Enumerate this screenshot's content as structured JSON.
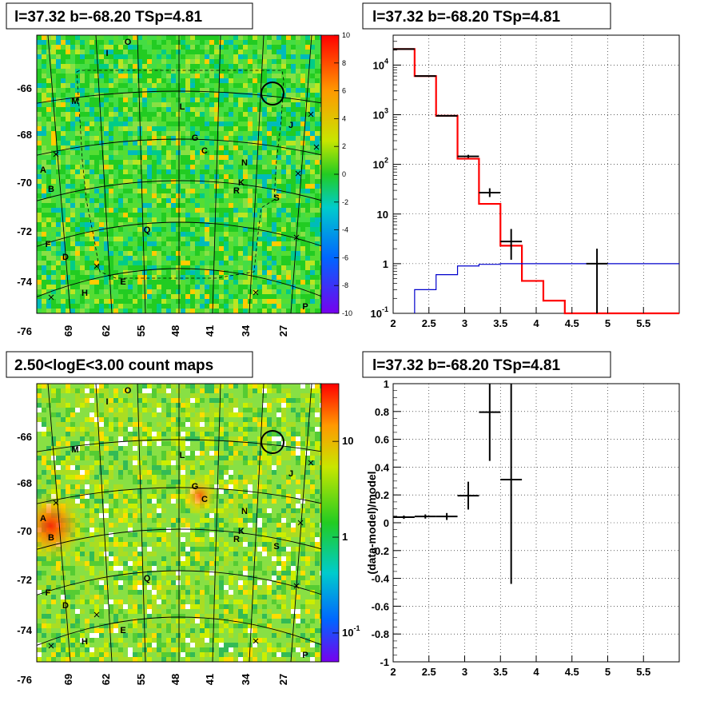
{
  "colors": {
    "model_line": "#ff0000",
    "background_line": "#0000cc",
    "data_points": "#000000"
  },
  "panels": {
    "top_left": {
      "title": "l=37.32 b=-68.20 TSp=4.81",
      "map_type": "significance map",
      "ylabels": [
        "-66",
        "-68",
        "-70",
        "-72",
        "-74",
        "-76"
      ],
      "xlabels": [
        "69",
        "62",
        "55",
        "48",
        "41",
        "34",
        "27"
      ],
      "colorbar_ticks": [
        "10",
        "8",
        "6",
        "4",
        "2",
        "0",
        "-2",
        "-4",
        "-6",
        "-8",
        "-10"
      ]
    },
    "top_right": {
      "title": "l=37.32 b=-68.20 TSp=4.81",
      "xticks": [
        "2",
        "2.5",
        "3",
        "3.5",
        "4",
        "4.5",
        "5",
        "5.5"
      ],
      "yticks": [
        {
          "base": "10",
          "exp": "4"
        },
        {
          "base": "10",
          "exp": "3"
        },
        {
          "base": "10",
          "exp": "2"
        },
        {
          "base": "10",
          "exp": ""
        },
        {
          "base": "1",
          "exp": ""
        },
        {
          "base": "10",
          "exp": "-1"
        }
      ]
    },
    "bottom_left": {
      "title": "2.50<logE<3.00 count maps",
      "ylabels": [
        "-66",
        "-68",
        "-70",
        "-72",
        "-74",
        "-76"
      ],
      "xlabels": [
        "69",
        "62",
        "55",
        "48",
        "41",
        "34",
        "27"
      ],
      "colorbar_ticks": [
        {
          "base": "10",
          "exp": ""
        },
        {
          "base": "1",
          "exp": ""
        },
        {
          "base": "10",
          "exp": "-1"
        }
      ]
    },
    "bottom_right": {
      "title": "l=37.32 b=-68.20 TSp=4.81",
      "ylabel": "(data-model)/model",
      "xticks": [
        "2",
        "2.5",
        "3",
        "3.5",
        "4",
        "4.5",
        "5",
        "5.5"
      ],
      "yticks": [
        "1",
        "0.8",
        "0.6",
        "0.4",
        "0.2",
        "0",
        "-0.2",
        "-0.4",
        "-0.6",
        "-0.8",
        "-1"
      ]
    }
  },
  "source_labels": [
    "A",
    "B",
    "C",
    "D",
    "E",
    "F",
    "G",
    "H",
    "I",
    "J",
    "K",
    "L",
    "M",
    "N",
    "O",
    "P",
    "Q",
    "R",
    "S"
  ],
  "chart_data": [
    {
      "type": "heatmap",
      "title": "l=37.32 b=-68.20 TSp=4.81",
      "colorbar_range": [
        -10,
        10
      ],
      "ylim": [
        -77,
        -65
      ],
      "xlim": [
        76,
        20
      ],
      "region_marker": {
        "l": 30,
        "b": -67.8
      }
    },
    {
      "type": "line",
      "title": "l=37.32 b=-68.20 TSp=4.81",
      "log_y": true,
      "xlim": [
        2,
        6
      ],
      "ylim": [
        0.1,
        40000
      ],
      "grid": true,
      "series": [
        {
          "role": "model",
          "color": "red",
          "bin_edges": [
            2,
            2.3,
            2.6,
            2.9,
            3.2,
            3.5,
            3.8,
            4.1,
            4.4,
            6
          ],
          "values": [
            21000,
            6000,
            950,
            130,
            16,
            2.3,
            0.45,
            0.18,
            0.1
          ]
        },
        {
          "role": "background",
          "color": "blue",
          "bin_edges": [
            2.3,
            2.6,
            2.9,
            3.2,
            3.5,
            6
          ],
          "values": [
            0.3,
            0.6,
            0.9,
            0.97,
            1.0
          ]
        }
      ],
      "data_points": [
        {
          "x": 2.15,
          "y": 21000,
          "xerr": 0.15,
          "ylo": 20500,
          "yhi": 21500
        },
        {
          "x": 2.45,
          "y": 6000,
          "xerr": 0.15,
          "ylo": 5900,
          "yhi": 6100
        },
        {
          "x": 2.75,
          "y": 950,
          "xerr": 0.15,
          "ylo": 920,
          "yhi": 980
        },
        {
          "x": 3.05,
          "y": 145,
          "xerr": 0.15,
          "ylo": 135,
          "yhi": 156
        },
        {
          "x": 3.35,
          "y": 27,
          "xerr": 0.15,
          "ylo": 22,
          "yhi": 33
        },
        {
          "x": 3.65,
          "y": 2.8,
          "xerr": 0.15,
          "ylo": 1.2,
          "yhi": 5.0
        },
        {
          "x": 4.85,
          "y": 1.0,
          "xerr": 0.15,
          "ylo": 0.1,
          "yhi": 2.0
        }
      ]
    },
    {
      "type": "heatmap",
      "title": "2.50<logE<3.00 count maps",
      "log_colorbar": true,
      "colorbar_range": [
        0.05,
        40
      ],
      "ylim": [
        -77,
        -65
      ],
      "xlim": [
        76,
        20
      ],
      "hotspots": [
        {
          "name": "A",
          "l": 73,
          "b": -71.2
        },
        {
          "name": "C",
          "l": 44,
          "b": -70.2
        }
      ]
    },
    {
      "type": "scatter",
      "title": "l=37.32 b=-68.20 TSp=4.81",
      "ylabel": "(data-model)/model",
      "xlim": [
        2,
        6
      ],
      "ylim": [
        -1,
        1
      ],
      "grid": true,
      "data_points": [
        {
          "x": 2.15,
          "y": 0.04,
          "xerr": 0.15,
          "yerr": 0.012
        },
        {
          "x": 2.45,
          "y": 0.045,
          "xerr": 0.15,
          "yerr": 0.015
        },
        {
          "x": 2.75,
          "y": 0.045,
          "xerr": 0.15,
          "yerr": 0.025
        },
        {
          "x": 3.05,
          "y": 0.195,
          "xerr": 0.15,
          "yerr": 0.1
        },
        {
          "x": 3.35,
          "y": 0.795,
          "xerr": 0.15,
          "yerr": 0.35
        },
        {
          "x": 3.65,
          "y": 0.31,
          "xerr": 0.15,
          "yerr": 0.75
        }
      ]
    }
  ]
}
